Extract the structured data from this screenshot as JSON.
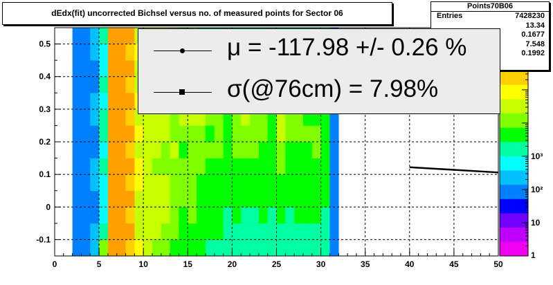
{
  "chart_data": {
    "type": "heatmap",
    "title": "dEdx(fit) uncorrected Bichsel versus no. of measured points for Sector 06",
    "xlim": [
      0,
      50
    ],
    "ylim": [
      -0.15,
      0.55
    ],
    "x_ticks": [
      "0",
      "5",
      "10",
      "15",
      "20",
      "25",
      "30",
      "35",
      "40",
      "45",
      "50"
    ],
    "y_ticks": [
      "-0.1",
      "0",
      "0.1",
      "0.2",
      "0.3",
      "0.4",
      "0.5"
    ],
    "z_scale": "log",
    "z_ticks": [
      "1",
      "10",
      "10²",
      "10³"
    ],
    "grid": true,
    "x_bin_width": 1,
    "y_bin_width": 0.05,
    "columns": [
      {
        "x0": 2,
        "codes": "EEEEEEEEEEEEEE"
      },
      {
        "x0": 3,
        "codes": "EEEEEEEEEEEEEE"
      },
      {
        "x0": 4,
        "codes": "FFEEFFEEFFEEFF"
      },
      {
        "x0": 5,
        "codes": "JHGGGHGHHGHGGH"
      },
      {
        "x0": 6,
        "codes": "NNNNNNNNNNNNNN"
      },
      {
        "x0": 7,
        "codes": "NNNNNNNNNNNNNN"
      },
      {
        "x0": 8,
        "codes": "MNMNMNMNMNMNMN"
      },
      {
        "x0": 9,
        "codes": "LKKKLLKLKLKKLK"
      },
      {
        "x0": 10,
        "codes": "KKKKKKKKKKKKKK"
      },
      {
        "x0": 11,
        "codes": "JKKKKJKKKKKKJK"
      },
      {
        "x0": 12,
        "codes": "JJKKKJJKKKJJKK"
      },
      {
        "x0": 13,
        "codes": "IJJJJJKJJJJJJJ"
      },
      {
        "x0": 14,
        "codes": "IIIJJJIJKJJJJI"
      },
      {
        "x0": 15,
        "codes": "IIJJJJJJKJJJJJ"
      },
      {
        "x0": 16,
        "codes": "IIIIIJJJKJJJIH"
      },
      {
        "x0": 17,
        "codes": "HIIIIIJIJJHIHH"
      },
      {
        "x0": 18,
        "codes": "HIIIIIJJJJIJIH"
      },
      {
        "x0": 19,
        "codes": "HHHIIIIIIJIIHH"
      },
      {
        "x0": 20,
        "codes": "HHIIIIJJJJIIHH"
      },
      {
        "x0": 21,
        "codes": "HHHIIIJJKJJIIH"
      },
      {
        "x0": 22,
        "codes": "HHHIIIJJJIIIHH"
      },
      {
        "x0": 23,
        "codes": "HHIIIIIJJJIIHH"
      },
      {
        "x0": 24,
        "codes": "HHHIIIIIIJIIHH"
      },
      {
        "x0": 25,
        "codes": "HHIIIJJKKJJIIH"
      },
      {
        "x0": 26,
        "codes": "HHHIIIIJJJIIHH"
      },
      {
        "x0": 27,
        "codes": "HHIIIIIJJIIIHH"
      },
      {
        "x0": 28,
        "codes": "HHIIIIIJIIIIHH"
      },
      {
        "x0": 29,
        "codes": "HHIIIIJJIIIHHH"
      },
      {
        "x0": 30,
        "codes": "HHHIIIIIIIIHHH"
      },
      {
        "x0": 31,
        "codes": "EEEEEEEEEEEEEE"
      }
    ],
    "series": [
      {
        "x": [
          40,
          45,
          50
        ],
        "y": [
          0.122,
          0.114,
          0.106
        ]
      }
    ],
    "stats": {
      "name": "Points70B06",
      "rows": [
        {
          "label": "Entries",
          "value": "7428230"
        },
        {
          "label": "",
          "value": "13.34"
        },
        {
          "label": "",
          "value": "0.1677"
        },
        {
          "label": "",
          "value": "7.548"
        },
        {
          "label": "",
          "value": "0.1992"
        }
      ]
    },
    "legend": {
      "entries": [
        {
          "marker": "circle",
          "text": "μ  = -117.98 +/-  0.26 %"
        },
        {
          "marker": "square",
          "text": "σ(@76cm) =  7.98%"
        }
      ]
    }
  },
  "palette": [
    "#f000f0",
    "#c000ff",
    "#7000ff",
    "#0000ff",
    "#0080ff",
    "#00c0ff",
    "#00ffff",
    "#00ffa0",
    "#00ff00",
    "#80ff00",
    "#c8ff00",
    "#ffff00",
    "#ffd000",
    "#ffa000",
    "#ff6000",
    "#ff0000"
  ]
}
